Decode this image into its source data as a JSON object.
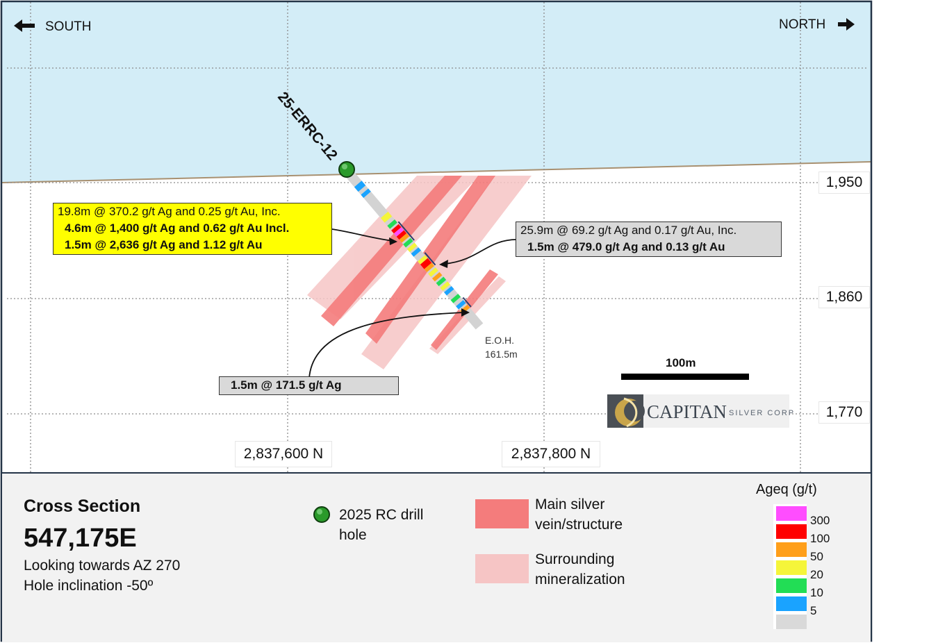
{
  "direction": {
    "south": "SOUTH",
    "north": "NORTH"
  },
  "hole": {
    "name": "25-ERRC-12",
    "eoh_label": "E.O.H.",
    "eoh_depth": "161.5m"
  },
  "elevations": [
    "1,950",
    "1,860",
    "1,770"
  ],
  "northings": [
    "2,837,600 N",
    "2,837,800 N"
  ],
  "scale_bar": "100m",
  "callouts": {
    "yellow": [
      "19.8m @ 370.2 g/t Ag and 0.25 g/t Au, Inc.",
      "4.6m @ 1,400 g/t Ag and 0.62 g/t Au Incl.",
      "1.5m @ 2,636 g/t Ag and 1.12 g/t Au"
    ],
    "grey_upper": [
      "25.9m @ 69.2 g/t Ag and 0.17 g/t Au, Inc.",
      "1.5m @ 479.0 g/t Ag and 0.13 g/t Au"
    ],
    "grey_lower": "1.5m @ 171.5 g/t Ag"
  },
  "logo": {
    "main": "CAPITAN",
    "sub": "SILVER CORP"
  },
  "legend": {
    "title": "Cross Section",
    "easting": "547,175E",
    "line1": "Looking towards AZ 270",
    "line2": "Hole inclination -50º",
    "drill_hole_label_1": "2025 RC drill",
    "drill_hole_label_2": "hole",
    "main_label_1": "Main silver",
    "main_label_2": "vein/structure",
    "surround_label_1": "Surrounding",
    "surround_label_2": "mineralization",
    "ageq_title": "Ageq (g/t)",
    "ageq_scale": [
      {
        "label": "300",
        "color": "#ff4dff"
      },
      {
        "label": "100",
        "color": "#ff0000"
      },
      {
        "label": "50",
        "color": "#ff9f1a"
      },
      {
        "label": "20",
        "color": "#f5f53a"
      },
      {
        "label": "10",
        "color": "#22dd55"
      },
      {
        "label": "5",
        "color": "#1aa3ff"
      },
      {
        "label": "",
        "color": "#d9d9d9"
      }
    ]
  },
  "colors": {
    "sky": "#d3edf7",
    "main_vein": "#f47c7c",
    "surrounding": "#f6c5c5",
    "callout_yellow": "#ffff00",
    "callout_grey": "#d9d9d9",
    "frame": "#243447"
  }
}
